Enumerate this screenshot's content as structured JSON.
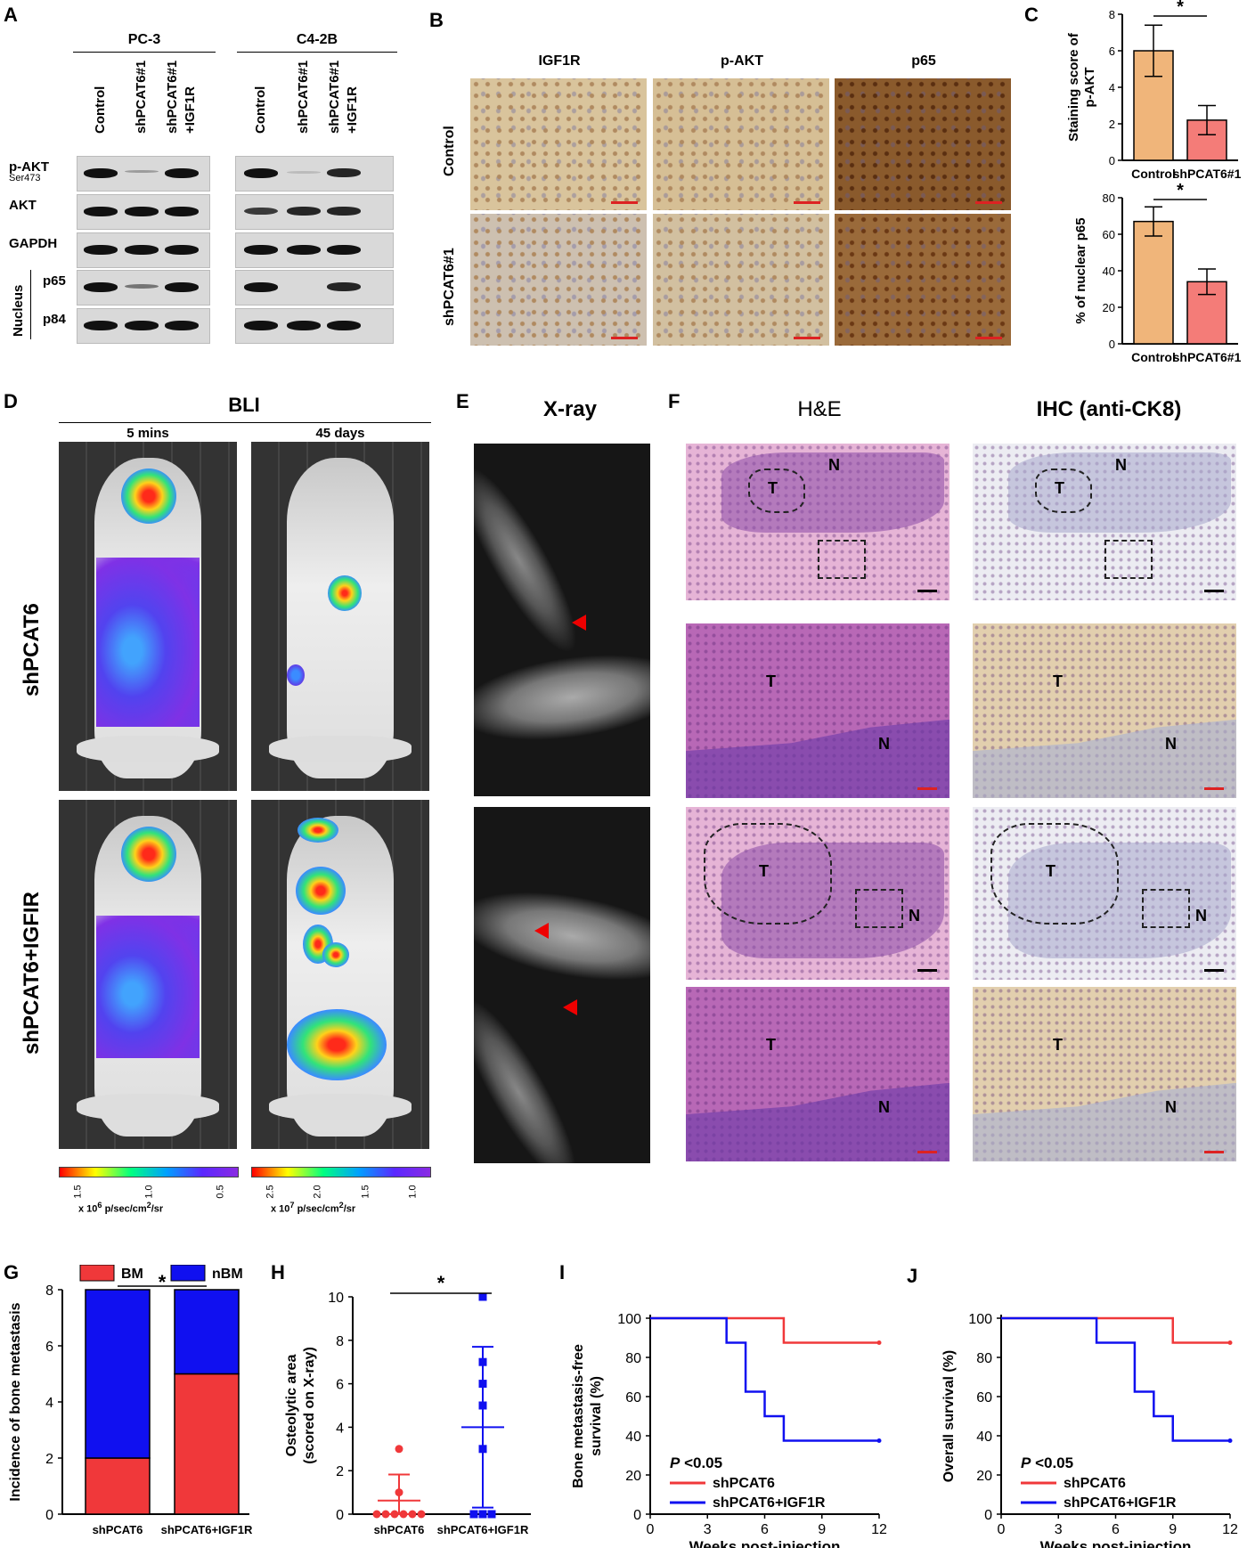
{
  "panels": {
    "A": "A",
    "B": "B",
    "C": "C",
    "D": "D",
    "E": "E",
    "F": "F",
    "G": "G",
    "H": "H",
    "I": "I",
    "J": "J"
  },
  "blot": {
    "cell_lines": [
      "PC-3",
      "C4-2B"
    ],
    "lanes": [
      "Control",
      "shPCAT6#1",
      "shPCAT6#1\n+IGF1R"
    ],
    "rows": [
      {
        "label": "p-AKT",
        "sub": "Ser473"
      },
      {
        "label": "AKT",
        "sub": ""
      },
      {
        "label": "GAPDH",
        "sub": ""
      },
      {
        "label": "p65",
        "sub": ""
      },
      {
        "label": "p84",
        "sub": ""
      }
    ],
    "nucleus_label": "Nucleus",
    "band_intensity": {
      "PC-3": [
        [
          1,
          0.3,
          1
        ],
        [
          1,
          1,
          1
        ],
        [
          1,
          1,
          1
        ],
        [
          1,
          0.5,
          1
        ],
        [
          1,
          1,
          1
        ]
      ],
      "C4-2B": [
        [
          1,
          0.15,
          0.9
        ],
        [
          0.8,
          0.9,
          0.9
        ],
        [
          1,
          1,
          1
        ],
        [
          1,
          0,
          0.9
        ],
        [
          1,
          1,
          1
        ]
      ]
    }
  },
  "ihc": {
    "columns": [
      "IGF1R",
      "p-AKT",
      "p65"
    ],
    "rows": [
      "Control",
      "shPCAT6#1"
    ]
  },
  "panelC": {
    "top": {
      "ylabel": "Staining score of\np-AKT",
      "categories": [
        "Control",
        "shPCAT6#1"
      ],
      "values": [
        6.0,
        2.2
      ],
      "errors": [
        1.4,
        0.8
      ],
      "yticks": [
        "0",
        "2",
        "4",
        "6",
        "8"
      ],
      "sig": "*"
    },
    "bottom": {
      "ylabel": "% of nuclear p65",
      "categories": [
        "Control",
        "shPCAT6#1"
      ],
      "values": [
        67,
        34
      ],
      "errors": [
        8,
        7
      ],
      "yticks": [
        "0",
        "20",
        "40",
        "60",
        "80"
      ],
      "sig": "*"
    }
  },
  "panelD": {
    "title": "BLI",
    "timepoints": [
      "5 mins",
      "45 days"
    ],
    "rows": [
      "shPCAT6",
      "shPCAT6+IGFIR"
    ],
    "scale1": {
      "ticks": [
        "1.5",
        "1.0",
        "0.5"
      ],
      "unit_pre": "x 10",
      "unit_exp": "6",
      "unit_post": " p/sec/cm",
      "unit_exp2": "2",
      "unit_post2": "/sr"
    },
    "scale2": {
      "ticks": [
        "2.5",
        "2.0",
        "1.5",
        "1.0"
      ],
      "unit_pre": "x 10",
      "unit_exp": "7",
      "unit_post": " p/sec/cm",
      "unit_exp2": "2",
      "unit_post2": "/sr"
    }
  },
  "panelE": {
    "title": "X-ray"
  },
  "panelF": {
    "he_title": "H&E",
    "ihc_title": "IHC (anti-CK8)",
    "labels": {
      "T": "T",
      "N": "N"
    }
  },
  "chart_data": [
    {
      "panel": "G",
      "type": "bar",
      "categories": [
        "shPCAT6",
        "shPCAT6+IGF1R"
      ],
      "series": [
        {
          "name": "BM",
          "values": [
            2,
            5
          ],
          "color": "#f0383a"
        },
        {
          "name": "nBM",
          "values": [
            6,
            3
          ],
          "color": "#1010f0"
        }
      ],
      "stacked": true,
      "ylabel": "Incidence of bone metastasis",
      "ylim": [
        0,
        8
      ],
      "yticks": [
        "0",
        "2",
        "4",
        "6",
        "8"
      ],
      "sig": "*"
    },
    {
      "panel": "H",
      "type": "scatter",
      "categories": [
        "shPCAT6",
        "shPCAT6+IGF1R"
      ],
      "points": [
        [
          0,
          0,
          0,
          0,
          0,
          0,
          1,
          3
        ],
        [
          0,
          0,
          0,
          3,
          5,
          6,
          7,
          10
        ]
      ],
      "means": [
        0.625,
        4.0
      ],
      "sd": [
        1.2,
        3.7
      ],
      "ylabel": "Osteolytic area\n(scored on X-ray)",
      "ylim": [
        0,
        10
      ],
      "yticks": [
        "0",
        "2",
        "4",
        "6",
        "8",
        "10"
      ],
      "sig": "*",
      "colors": [
        "#f0383a",
        "#1010f0"
      ]
    },
    {
      "panel": "I",
      "type": "line",
      "xlabel": "Weeks post-injection",
      "ylabel": "Bone metastasis-free\nsurvival (%)",
      "xticks": [
        "0",
        "3",
        "6",
        "9",
        "12"
      ],
      "yticks": [
        "0",
        "20",
        "40",
        "60",
        "80",
        "100"
      ],
      "xlim": [
        0,
        12
      ],
      "ylim": [
        0,
        100
      ],
      "series": [
        {
          "name": "shPCAT6",
          "color": "#f0383a",
          "steps": [
            [
              0,
              100
            ],
            [
              7,
              100
            ],
            [
              7,
              87.5
            ],
            [
              12,
              87.5
            ]
          ]
        },
        {
          "name": "shPCAT6+IGF1R",
          "color": "#1010f0",
          "steps": [
            [
              0,
              100
            ],
            [
              4,
              100
            ],
            [
              4,
              87.5
            ],
            [
              5,
              87.5
            ],
            [
              5,
              62.5
            ],
            [
              6,
              62.5
            ],
            [
              6,
              50
            ],
            [
              7,
              50
            ],
            [
              7,
              37.5
            ],
            [
              12,
              37.5
            ]
          ]
        }
      ],
      "pvalue_p": "P",
      "pvalue_rest": " <0.05"
    },
    {
      "panel": "J",
      "type": "line",
      "xlabel": "Weeks post-injection",
      "ylabel": "Overall survival (%)",
      "xticks": [
        "0",
        "3",
        "6",
        "9",
        "12"
      ],
      "yticks": [
        "0",
        "20",
        "40",
        "60",
        "80",
        "100"
      ],
      "xlim": [
        0,
        12
      ],
      "ylim": [
        0,
        100
      ],
      "series": [
        {
          "name": "shPCAT6",
          "color": "#f0383a",
          "steps": [
            [
              0,
              100
            ],
            [
              9,
              100
            ],
            [
              9,
              87.5
            ],
            [
              12,
              87.5
            ]
          ]
        },
        {
          "name": "shPCAT6+IGF1R",
          "color": "#1010f0",
          "steps": [
            [
              0,
              100
            ],
            [
              5,
              100
            ],
            [
              5,
              87.5
            ],
            [
              7,
              87.5
            ],
            [
              7,
              62.5
            ],
            [
              8,
              62.5
            ],
            [
              8,
              50
            ],
            [
              9,
              50
            ],
            [
              9,
              37.5
            ],
            [
              12,
              37.5
            ]
          ]
        }
      ],
      "pvalue_p": "P",
      "pvalue_rest": " <0.05"
    }
  ]
}
